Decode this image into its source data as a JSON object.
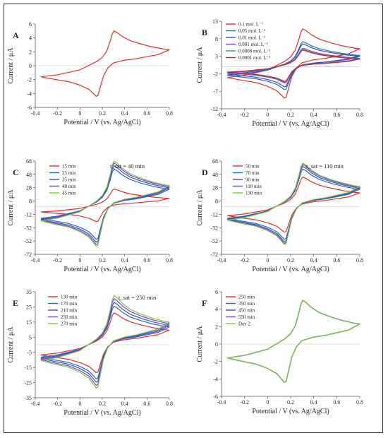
{
  "chart_data": [
    {
      "panel": "A",
      "type": "line",
      "xlabel": "Potential / V (vs. Ag/AgCl)",
      "ylabel": "Current / μA",
      "xlim": [
        -0.4,
        0.8
      ],
      "ylim": [
        -6,
        6
      ],
      "xticks": [
        "-0.4",
        "-0.2",
        "0",
        "0.2",
        "0.4",
        "0.6",
        "0.8"
      ],
      "yticks": [
        "6",
        "4",
        "2",
        "0",
        "-2",
        "-4",
        "-6"
      ],
      "series": [
        {
          "color": "#e32d2d",
          "scale": 1.0,
          "offset": 0
        }
      ]
    },
    {
      "panel": "B",
      "type": "line",
      "xlabel": "Potential / V (vs. Ag/AgCl)",
      "ylabel": "Current / μA",
      "xlim": [
        -0.4,
        0.8
      ],
      "ylim": [
        -12,
        13
      ],
      "xticks": [
        "-0.4",
        "-0.2",
        "0",
        "0.2",
        "0.4",
        "0.6",
        "0.8"
      ],
      "yticks": [
        "13",
        "8",
        "3",
        "-2",
        "-7",
        "-12"
      ],
      "series": [
        {
          "name": "0.1 mol. L⁻¹",
          "color": "#e32d2d",
          "scale": 2.1,
          "offset": 0.3
        },
        {
          "name": "0.05 mol. L⁻¹",
          "color": "#1f6fb4",
          "scale": 1.45,
          "offset": -0.1
        },
        {
          "name": "0.01 mol. L⁻¹",
          "color": "#3a4fc0",
          "scale": 1.3,
          "offset": 0
        },
        {
          "name": "0.001 mol. L⁻¹",
          "color": "#7c3fc6",
          "scale": 1.05,
          "offset": 0
        },
        {
          "name": "0.0008 mol. L⁻¹",
          "color": "#2aa07a",
          "scale": 0.98,
          "offset": 0
        },
        {
          "name": "0.0001 mol. L⁻¹",
          "color": "#c0283a",
          "scale": 0.95,
          "offset": 0
        }
      ]
    },
    {
      "panel": "C",
      "type": "line",
      "xlabel": "Potential / V (vs. Ag/AgCl)",
      "ylabel": "Current / μA",
      "annotation": "t_sat = 40 min",
      "xlim": [
        -0.4,
        0.8
      ],
      "ylim": [
        -72,
        68
      ],
      "xticks": [
        "-0.4",
        "-0.2",
        "0",
        "0.2",
        "0.4",
        "0.6",
        "0.8"
      ],
      "yticks": [
        "68",
        "48",
        "28",
        "8",
        "-12",
        "-32",
        "-52",
        "-72"
      ],
      "series": [
        {
          "name": "15 min",
          "color": "#e32d2d",
          "scale": 5.2,
          "offset": 0
        },
        {
          "name": "25 min",
          "color": "#1f6fb4",
          "scale": 11.2,
          "offset": 0
        },
        {
          "name": "35 min",
          "color": "#3a4fc0",
          "scale": 12.2,
          "offset": 0
        },
        {
          "name": "40 min",
          "color": "#7c3fc6",
          "scale": 13.0,
          "offset": 0
        },
        {
          "name": "45 min",
          "color": "#7ac943",
          "scale": 13.6,
          "offset": 0
        }
      ]
    },
    {
      "panel": "D",
      "type": "line",
      "xlabel": "Potential / V (vs. Ag/AgCl)",
      "ylabel": "Current / μA",
      "annotation": "t_sat = 110 min",
      "xlim": [
        -0.4,
        0.8
      ],
      "ylim": [
        -72,
        68
      ],
      "xticks": [
        "-0.4",
        "-0.2",
        "0",
        "0.2",
        "0.4",
        "0.6",
        "0.8"
      ],
      "yticks": [
        "68",
        "48",
        "28",
        "8",
        "-12",
        "-32",
        "-52",
        "-72"
      ],
      "series": [
        {
          "name": "50 min",
          "color": "#e32d2d",
          "scale": 8.8,
          "offset": 0
        },
        {
          "name": "70 min",
          "color": "#1f6fb4",
          "scale": 11.2,
          "offset": 0
        },
        {
          "name": "90 min",
          "color": "#3a4fc0",
          "scale": 12.0,
          "offset": 0
        },
        {
          "name": "110 min",
          "color": "#7c3fc6",
          "scale": 12.6,
          "offset": 0
        },
        {
          "name": "130 min",
          "color": "#7ac943",
          "scale": 13.0,
          "offset": 0
        }
      ]
    },
    {
      "panel": "E",
      "type": "line",
      "xlabel": "Potential / V (vs. Ag/AgCl)",
      "ylabel": "Current / μA",
      "annotation": "t_sat = 250 min",
      "xlim": [
        -0.4,
        0.8
      ],
      "ylim": [
        -35,
        35
      ],
      "xticks": [
        "-0.4",
        "-0.2",
        "0",
        "0.2",
        "0.4",
        "0.6",
        "0.8"
      ],
      "yticks": [
        "35",
        "25",
        "15",
        "5",
        "-5",
        "-15",
        "-25",
        "-35"
      ],
      "series": [
        {
          "name": "130 min",
          "color": "#e32d2d",
          "scale": 4.2,
          "offset": 0
        },
        {
          "name": "170 min",
          "color": "#1f6fb4",
          "scale": 5.1,
          "offset": 0
        },
        {
          "name": "210 min",
          "color": "#3a4fc0",
          "scale": 5.6,
          "offset": 0
        },
        {
          "name": "250 min",
          "color": "#7c3fc6",
          "scale": 6.1,
          "offset": 0
        },
        {
          "name": "270 min",
          "color": "#7ac943",
          "scale": 6.5,
          "offset": 0
        }
      ]
    },
    {
      "panel": "F",
      "type": "line",
      "xlabel": "Potential / V (vs. Ag/AgCl)",
      "ylabel": "Current / μA",
      "xlim": [
        -0.4,
        0.8
      ],
      "ylim": [
        -6,
        6
      ],
      "xticks": [
        "-0.4",
        "-0.2",
        "0",
        "0.2",
        "0.4",
        "0.6",
        "0.8"
      ],
      "yticks": [
        "6",
        "4",
        "2",
        "0",
        "-2",
        "-4",
        "-6"
      ],
      "series": [
        {
          "name": "250 min",
          "color": "#e32d2d",
          "scale": 1.0,
          "offset": 0
        },
        {
          "name": "350 min",
          "color": "#1f6fb4",
          "scale": 1.0,
          "offset": 0
        },
        {
          "name": "450 min",
          "color": "#3a4fc0",
          "scale": 1.0,
          "offset": 0
        },
        {
          "name": "550 min",
          "color": "#7c3fc6",
          "scale": 1.0,
          "offset": 0
        },
        {
          "name": "Day 2",
          "color": "#7ac943",
          "scale": 1.0,
          "offset": 0
        }
      ]
    }
  ],
  "base_curve": {
    "forward": [
      [
        -0.35,
        -1.6
      ],
      [
        -0.2,
        -1.3
      ],
      [
        0.0,
        -0.6
      ],
      [
        0.1,
        0.2
      ],
      [
        0.15,
        0.6
      ],
      [
        0.2,
        1.2
      ],
      [
        0.24,
        2.1
      ],
      [
        0.27,
        3.5
      ],
      [
        0.29,
        4.6
      ],
      [
        0.305,
        5.0
      ],
      [
        0.33,
        4.8
      ],
      [
        0.38,
        4.2
      ],
      [
        0.45,
        3.6
      ],
      [
        0.55,
        3.1
      ],
      [
        0.65,
        2.7
      ],
      [
        0.75,
        2.4
      ],
      [
        0.8,
        2.3
      ]
    ],
    "reverse": [
      [
        0.8,
        2.3
      ],
      [
        0.7,
        1.6
      ],
      [
        0.6,
        1.3
      ],
      [
        0.5,
        1.0
      ],
      [
        0.4,
        0.8
      ],
      [
        0.3,
        0.4
      ],
      [
        0.25,
        -0.3
      ],
      [
        0.21,
        -1.5
      ],
      [
        0.18,
        -3.2
      ],
      [
        0.16,
        -4.3
      ],
      [
        0.145,
        -4.4
      ],
      [
        0.12,
        -4.0
      ],
      [
        0.08,
        -3.4
      ],
      [
        0.0,
        -2.8
      ],
      [
        -0.1,
        -2.3
      ],
      [
        -0.25,
        -1.9
      ],
      [
        -0.35,
        -1.6
      ]
    ]
  }
}
